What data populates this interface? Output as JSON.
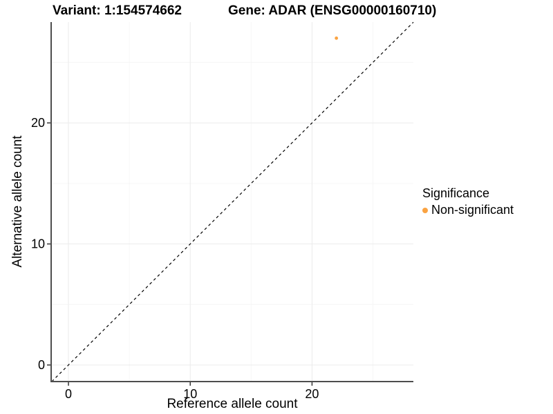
{
  "chart_data": {
    "type": "scatter",
    "title_left": "Variant: 1:154574662",
    "title_right": "Gene: ADAR (ENSG00000160710)",
    "xlabel": "Reference allele count",
    "ylabel": "Alternative allele count",
    "xlim": [
      -1.42,
      28.32
    ],
    "ylim": [
      -1.37,
      28.33
    ],
    "x_major_ticks": [
      0,
      10,
      20
    ],
    "x_minor_ticks": [
      5,
      15,
      25
    ],
    "y_major_ticks": [
      0,
      10,
      20
    ],
    "y_minor_ticks": [
      5,
      15,
      25
    ],
    "grid": true,
    "series": [
      {
        "name": "Non-significant",
        "color": "#FAA342",
        "points": [
          {
            "x": 22,
            "y": 27
          }
        ]
      }
    ],
    "reference_line": {
      "kind": "identity",
      "style": "dashed",
      "color": "#000000"
    },
    "legend": {
      "title": "Significance",
      "position": "right",
      "items": [
        {
          "label": "Non-significant",
          "color": "#FAA342"
        }
      ]
    },
    "colors": {
      "background": "#FFFFFF",
      "axis_line": "#4D4D4D",
      "tick_mark": "#333333",
      "grid_major": "#EBEBEB",
      "grid_minor": "#F6F6F6",
      "text": "#000000"
    }
  }
}
